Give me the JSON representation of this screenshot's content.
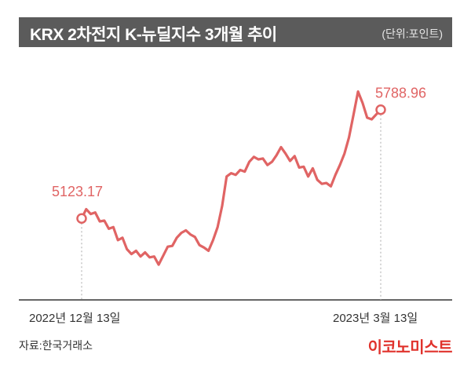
{
  "header": {
    "title": "KRX 2차전지 K-뉴딜지수 3개월 추이",
    "unit": "(단위:포인트)"
  },
  "footer": {
    "source": "자료:한국거래소",
    "brand": "이코노미스트"
  },
  "colors": {
    "line": "#e06464",
    "title_bg": "#5b5b5b",
    "brand": "#e0322c"
  },
  "chart_data": {
    "type": "line",
    "title": "KRX 2차전지 K-뉴딜지수 3개월 추이",
    "unit": "(단위:포인트)",
    "xlabel": "",
    "ylabel": "",
    "x_labels": [
      "2022년 12월 13일",
      "2023년 3월 13일"
    ],
    "start_value_label": "5123.17",
    "end_value_label": "5788.96",
    "ylim": [
      4730,
      5980
    ],
    "grid": false,
    "series": [
      {
        "values": [
          5123.17,
          5180,
          5150,
          5160,
          5105,
          5110,
          5060,
          5070,
          4990,
          5005,
          4935,
          4905,
          4925,
          4890,
          4915,
          4885,
          4890,
          4840,
          4895,
          4950,
          4955,
          5005,
          5035,
          5050,
          5025,
          5010,
          4960,
          4945,
          4925,
          4990,
          5070,
          5200,
          5380,
          5400,
          5390,
          5420,
          5410,
          5470,
          5500,
          5485,
          5490,
          5450,
          5470,
          5510,
          5560,
          5520,
          5475,
          5505,
          5435,
          5440,
          5380,
          5430,
          5360,
          5335,
          5340,
          5320,
          5390,
          5450,
          5520,
          5620,
          5760,
          5900,
          5830,
          5740,
          5730,
          5760,
          5788.96
        ]
      }
    ]
  }
}
